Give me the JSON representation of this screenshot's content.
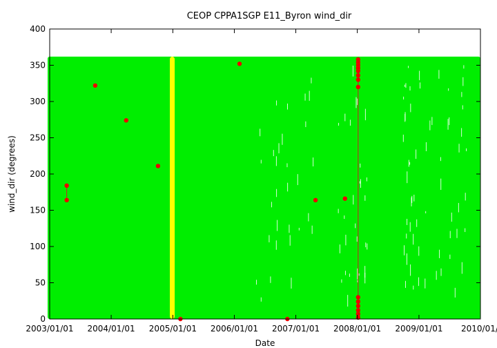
{
  "chart_data": {
    "type": "scatter",
    "title": "CEOP CPPA1SGP E11_Byron  wind_dir",
    "xlabel": "Date",
    "ylabel": "wind_dir (degrees)",
    "x_axis": {
      "type": "date",
      "min": "2003/01/01",
      "max": "2010/01/01",
      "ticks": [
        "2003/01/01",
        "2004/01/01",
        "2005/01/01",
        "2006/01/01",
        "2007/01/01",
        "2008/01/01",
        "2009/01/01",
        "2010/01/01"
      ]
    },
    "y_axis": {
      "min": 0,
      "max": 400,
      "ticks": [
        0,
        50,
        100,
        150,
        200,
        250,
        300,
        350,
        400
      ]
    },
    "grid": false,
    "colors": {
      "dense_series": "#00ee00",
      "highlight_band": "#ffff00",
      "flagged_points": "#ee0000"
    },
    "dense_series": {
      "x_range": [
        "2003/01/01",
        "2010/01/01"
      ],
      "y_range": [
        0,
        360
      ]
    },
    "highlight_band": {
      "x_range": [
        "2004/12/14",
        "2005/01/12"
      ],
      "y_range": [
        0,
        360
      ]
    },
    "flagged_points": [
      {
        "x": "2003/04/12",
        "y": 184
      },
      {
        "x": "2003/04/12",
        "y": 164
      },
      {
        "x": "2003/09/28",
        "y": 322
      },
      {
        "x": "2004/03/30",
        "y": 274
      },
      {
        "x": "2004/10/05",
        "y": 211
      },
      {
        "x": "2005/02/15",
        "y": 0
      },
      {
        "x": "2006/02/01",
        "y": 352
      },
      {
        "x": "2006/11/12",
        "y": 0
      },
      {
        "x": "2007/04/28",
        "y": 164
      },
      {
        "x": "2007/10/20",
        "y": 166
      },
      {
        "x": "2008/01/06",
        "y": 358
      },
      {
        "x": "2008/01/06",
        "y": 354
      },
      {
        "x": "2008/01/06",
        "y": 350
      },
      {
        "x": "2008/01/06",
        "y": 346
      },
      {
        "x": "2008/01/06",
        "y": 342
      },
      {
        "x": "2008/01/06",
        "y": 336
      },
      {
        "x": "2008/01/06",
        "y": 330
      },
      {
        "x": "2008/01/06",
        "y": 320
      },
      {
        "x": "2008/01/06",
        "y": 30
      },
      {
        "x": "2008/01/06",
        "y": 24
      },
      {
        "x": "2008/01/06",
        "y": 18
      },
      {
        "x": "2008/01/06",
        "y": 12
      },
      {
        "x": "2008/01/06",
        "y": 7
      },
      {
        "x": "2008/01/06",
        "y": 2
      }
    ],
    "connector_lines": [
      {
        "x": "2003/04/12",
        "y_range": [
          164,
          184
        ]
      },
      {
        "x": "2008/01/06",
        "y_range": [
          0,
          358
        ]
      }
    ]
  }
}
